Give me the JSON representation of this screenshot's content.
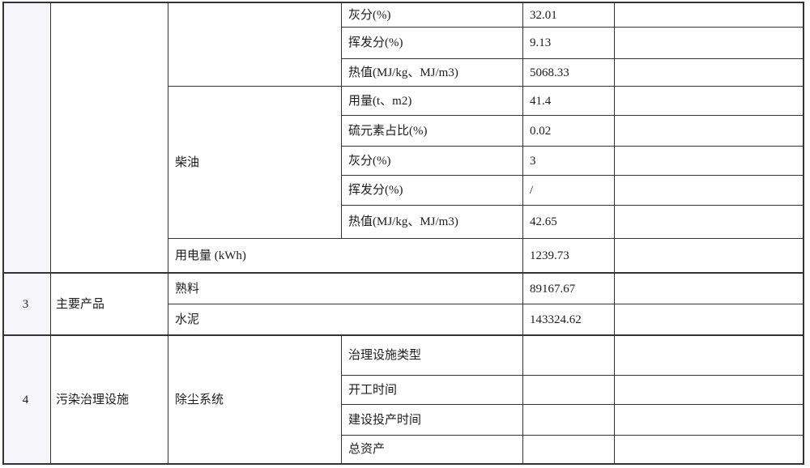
{
  "colors": {
    "border": "#333333",
    "seq_column_fill": "#f5f5fa",
    "background": "#ffffff",
    "text": "#1c1c1c"
  },
  "table": {
    "fuel": {
      "seq": "",
      "category": "",
      "unnamed_fuel_rows": [
        {
          "label": "灰分(%)",
          "value": "32.01"
        },
        {
          "label": "挥发分(%)",
          "value": "9.13"
        },
        {
          "label": "热值(MJ/kg、MJ/m3)",
          "value": "5068.33"
        }
      ],
      "diesel_name": "柴油",
      "diesel_rows": [
        {
          "label": "用量(t、m2)",
          "value": "41.4"
        },
        {
          "label": "硫元素占比(%)",
          "value": "0.02"
        },
        {
          "label": "灰分(%)",
          "value": "3"
        },
        {
          "label": "挥发分(%)",
          "value": "/"
        },
        {
          "label": "热值(MJ/kg、MJ/m3)",
          "value": "42.65"
        }
      ],
      "electricity": {
        "label": "用电量 (kWh)",
        "value": "1239.73"
      }
    },
    "products": {
      "seq": "3",
      "category": "主要产品",
      "rows": [
        {
          "label": "熟料",
          "value": "89167.67"
        },
        {
          "label": "水泥",
          "value": "143324.62"
        }
      ]
    },
    "treatment": {
      "seq": "4",
      "category": "污染治理设施",
      "system": "除尘系统",
      "rows": [
        {
          "label": "治理设施类型",
          "value": ""
        },
        {
          "label": "开工时间",
          "value": ""
        },
        {
          "label": "建设投产时间",
          "value": ""
        },
        {
          "label": "总资产",
          "value": ""
        }
      ]
    }
  }
}
